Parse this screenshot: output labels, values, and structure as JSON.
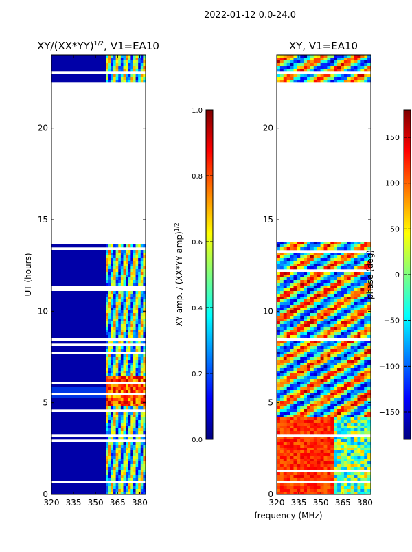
{
  "suptitle": "2022-01-12 0.0-24.0",
  "shared_xlabel": "frequency (MHz)",
  "chart_data": [
    {
      "type": "heatmap",
      "title_main": "XY/(XX*YY)",
      "title_sup": "1/2",
      "title_tail": ", V1=EA10",
      "ylabel": "UT (hours)",
      "xlim": [
        320,
        384
      ],
      "ylim": [
        0,
        24
      ],
      "xticks": [
        320,
        335,
        350,
        365,
        380
      ],
      "xtick_labels": [
        "320",
        "335",
        "350",
        "365",
        "380"
      ],
      "yticks": [
        0,
        5,
        10,
        15,
        20
      ],
      "ytick_labels": [
        "0",
        "5",
        "10",
        "15",
        "20"
      ],
      "data_coverage_hours": [
        [
          0,
          13.8
        ],
        [
          22.5,
          24
        ]
      ],
      "colorbar": {
        "label_main": "XY amp. / (XX*YY amp)",
        "label_sup": "1/2",
        "range": [
          0.0,
          1.0
        ],
        "ticks": [
          0.0,
          0.2,
          0.4,
          0.6,
          0.8,
          1.0
        ],
        "tick_labels": [
          "0.0",
          "0.2",
          "0.4",
          "0.6",
          "0.8",
          "1.0"
        ],
        "colormap": "jet"
      }
    },
    {
      "type": "heatmap",
      "title": "XY, V1=EA10",
      "ylabel": "",
      "xlim": [
        320,
        384
      ],
      "ylim": [
        0,
        24
      ],
      "xticks": [
        320,
        335,
        350,
        365,
        380
      ],
      "xtick_labels": [
        "320",
        "335",
        "350",
        "365",
        "380"
      ],
      "yticks": [
        0,
        5,
        10,
        15,
        20
      ],
      "ytick_labels": [
        "0",
        "5",
        "10",
        "15",
        "20"
      ],
      "data_coverage_hours": [
        [
          0,
          13.8
        ],
        [
          22.5,
          24
        ]
      ],
      "colorbar": {
        "label": "phase (deg)",
        "range": [
          -180,
          180
        ],
        "ticks": [
          -150,
          -100,
          -50,
          0,
          50,
          100,
          150
        ],
        "tick_labels": [
          "−150",
          "−100",
          "−50",
          "0",
          "50",
          "100",
          "150"
        ],
        "colormap": "jet"
      }
    }
  ]
}
